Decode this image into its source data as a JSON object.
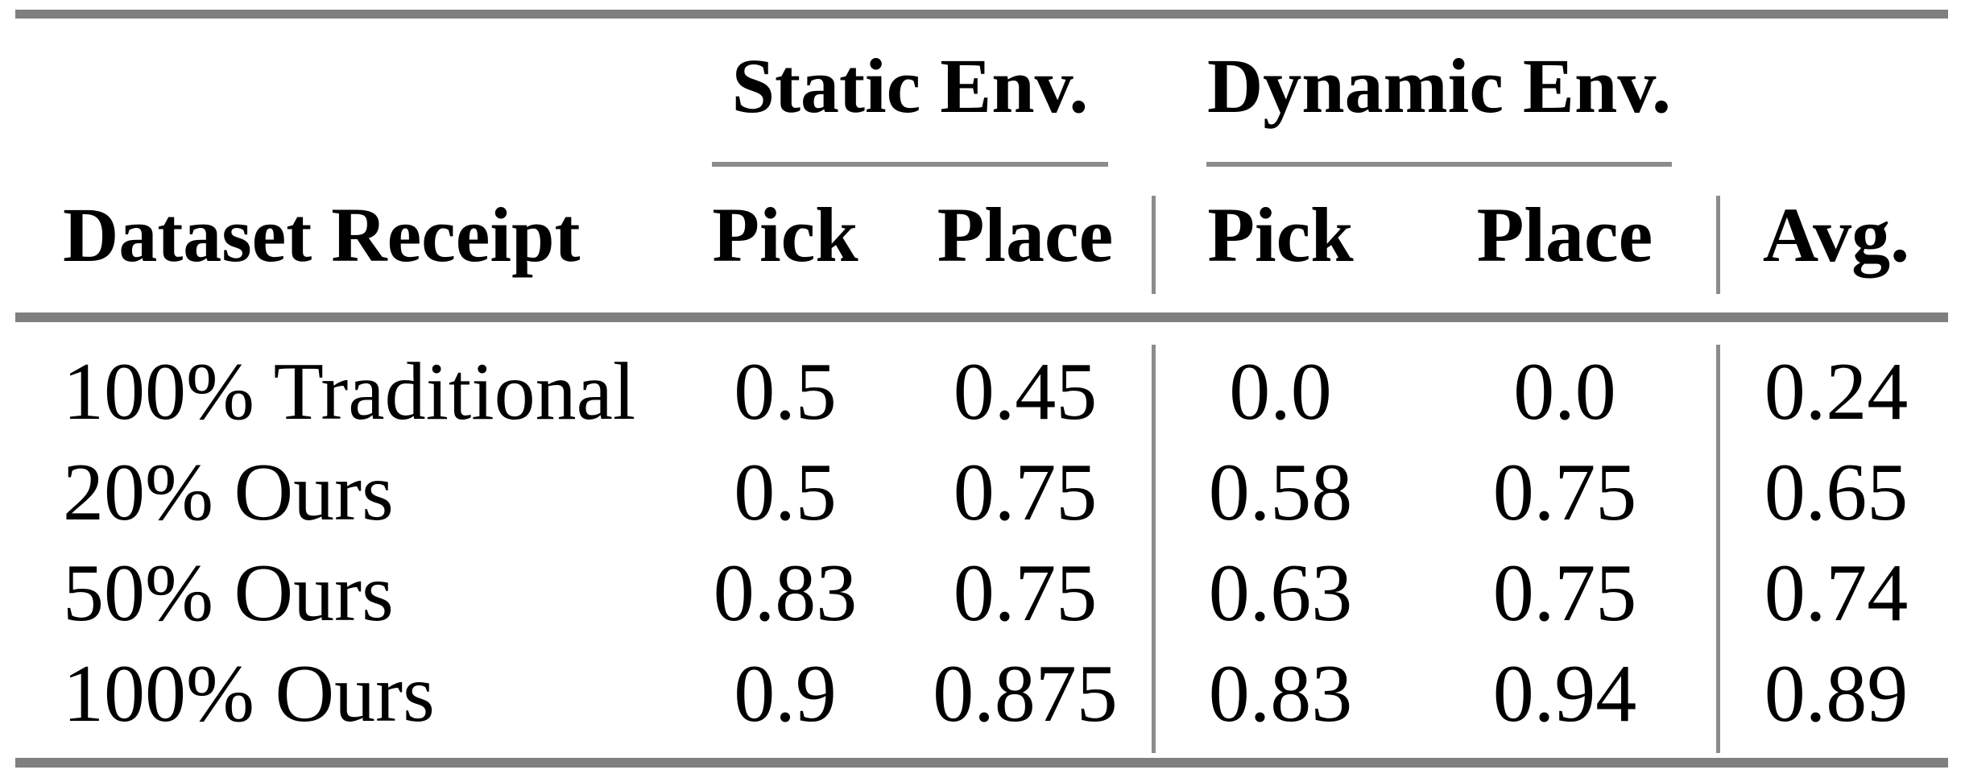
{
  "table": {
    "groups": [
      {
        "label": "Static Env."
      },
      {
        "label": "Dynamic Env."
      }
    ],
    "header": {
      "row_label": "Dataset Receipt",
      "columns": [
        "Pick",
        "Place",
        "Pick",
        "Place",
        "Avg."
      ]
    },
    "rows": [
      {
        "label": "100% Traditional",
        "values": [
          "0.5",
          "0.45",
          "0.0",
          "0.0",
          "0.24"
        ]
      },
      {
        "label": "20% Ours",
        "values": [
          "0.5",
          "0.75",
          "0.58",
          "0.75",
          "0.65"
        ]
      },
      {
        "label": "50% Ours",
        "values": [
          "0.83",
          "0.75",
          "0.63",
          "0.75",
          "0.74"
        ]
      },
      {
        "label": "100% Ours",
        "values": [
          "0.9",
          "0.875",
          "0.83",
          "0.94",
          "0.89"
        ]
      }
    ],
    "colors": {
      "text": "#000000",
      "rule_thick": "#7f7f7f",
      "rule_thin": "#8c8c8c",
      "background": "#ffffff"
    }
  }
}
